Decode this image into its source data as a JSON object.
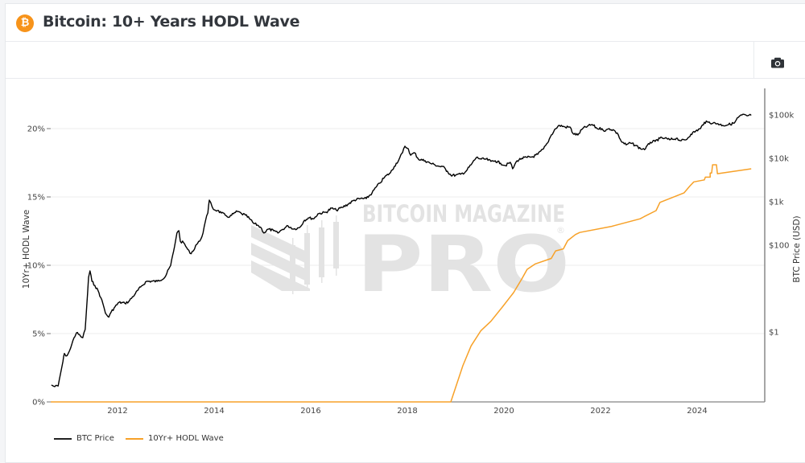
{
  "header": {
    "title": "Bitcoin: 10+ Years HODL Wave",
    "logo_icon": "bitcoin-logo-icon"
  },
  "toolbar": {
    "screenshot_icon": "camera-icon"
  },
  "watermark": {
    "line1": "BITCOIN MAGAZINE",
    "line2": "PRO",
    "mark": "®"
  },
  "colors": {
    "brand": "#f7931a",
    "price_line": "#000000",
    "hodl_line": "#f7a128",
    "grid": "#ececec",
    "watermark": "#e3e3e3"
  },
  "chart_data": {
    "type": "line",
    "title": "Bitcoin: 10+ Years HODL Wave",
    "xlabel": "",
    "ylabel": "10Yr+ HODL Wave",
    "y2label": "BTC Price (USD)",
    "xlim": [
      2010.6,
      2025.2
    ],
    "ylim": [
      0,
      22.2
    ],
    "y2_scale": "log",
    "y2lim": [
      0.025,
      400000
    ],
    "x_ticks": [
      2012,
      2014,
      2016,
      2018,
      2020,
      2022,
      2024
    ],
    "x_tick_labels": [
      "2012",
      "2014",
      "2016",
      "2018",
      "2020",
      "2022",
      "2024"
    ],
    "y_ticks": [
      0,
      5,
      10,
      15,
      20
    ],
    "y_tick_labels": [
      "0%",
      "5%",
      "10%",
      "15%",
      "20%"
    ],
    "y2_ticks": [
      1,
      100,
      1000,
      10000,
      100000
    ],
    "y2_tick_labels": [
      "$1",
      "$100",
      "$1k",
      "$10k",
      "$100k"
    ],
    "grid": true,
    "legend_position": "bottom-left",
    "series": [
      {
        "name": "BTC Price",
        "axis": "right",
        "points": [
          [
            2010.63,
            0.06
          ],
          [
            2010.7,
            0.055
          ],
          [
            2010.77,
            0.057
          ],
          [
            2010.82,
            0.11
          ],
          [
            2010.87,
            0.21
          ],
          [
            2010.9,
            0.32
          ],
          [
            2010.93,
            0.28
          ],
          [
            2010.98,
            0.32
          ],
          [
            2011.03,
            0.43
          ],
          [
            2011.1,
            0.74
          ],
          [
            2011.15,
            0.96
          ],
          [
            2011.23,
            0.81
          ],
          [
            2011.28,
            0.74
          ],
          [
            2011.33,
            1.14
          ],
          [
            2011.38,
            7.7
          ],
          [
            2011.4,
            18.2
          ],
          [
            2011.43,
            25.6
          ],
          [
            2011.47,
            14.7
          ],
          [
            2011.53,
            11.8
          ],
          [
            2011.6,
            8.8
          ],
          [
            2011.65,
            6.3
          ],
          [
            2011.7,
            4.4
          ],
          [
            2011.75,
            2.7
          ],
          [
            2011.82,
            2.2
          ],
          [
            2011.87,
            2.9
          ],
          [
            2011.93,
            3.6
          ],
          [
            2012.03,
            4.8
          ],
          [
            2012.15,
            4.6
          ],
          [
            2012.23,
            5.0
          ],
          [
            2012.37,
            7.7
          ],
          [
            2012.48,
            10.9
          ],
          [
            2012.6,
            14.7
          ],
          [
            2012.82,
            14.7
          ],
          [
            2012.98,
            18.2
          ],
          [
            2013.1,
            34.0
          ],
          [
            2013.2,
            123
          ],
          [
            2013.23,
            190
          ],
          [
            2013.27,
            215
          ],
          [
            2013.3,
            123
          ],
          [
            2013.37,
            113
          ],
          [
            2013.43,
            88
          ],
          [
            2013.5,
            65
          ],
          [
            2013.57,
            74
          ],
          [
            2013.62,
            100
          ],
          [
            2013.7,
            123
          ],
          [
            2013.77,
            190
          ],
          [
            2013.82,
            360
          ],
          [
            2013.87,
            550
          ],
          [
            2013.9,
            1090
          ],
          [
            2013.93,
            960
          ],
          [
            2013.98,
            680
          ],
          [
            2014.07,
            630
          ],
          [
            2014.15,
            550
          ],
          [
            2014.23,
            490
          ],
          [
            2014.32,
            445
          ],
          [
            2014.4,
            530
          ],
          [
            2014.48,
            600
          ],
          [
            2014.57,
            530
          ],
          [
            2014.65,
            490
          ],
          [
            2014.73,
            410
          ],
          [
            2014.82,
            316
          ],
          [
            2014.9,
            290
          ],
          [
            2014.98,
            245
          ],
          [
            2015.03,
            190
          ],
          [
            2015.12,
            235
          ],
          [
            2015.23,
            215
          ],
          [
            2015.32,
            190
          ],
          [
            2015.4,
            225
          ],
          [
            2015.53,
            278
          ],
          [
            2015.65,
            235
          ],
          [
            2015.77,
            255
          ],
          [
            2015.87,
            375
          ],
          [
            2015.95,
            425
          ],
          [
            2016.07,
            410
          ],
          [
            2016.15,
            530
          ],
          [
            2016.32,
            575
          ],
          [
            2016.43,
            710
          ],
          [
            2016.53,
            640
          ],
          [
            2016.65,
            740
          ],
          [
            2016.77,
            875
          ],
          [
            2016.9,
            1090
          ],
          [
            2017.03,
            1180
          ],
          [
            2017.15,
            1180
          ],
          [
            2017.27,
            1600
          ],
          [
            2017.35,
            2150
          ],
          [
            2017.43,
            2680
          ],
          [
            2017.53,
            3700
          ],
          [
            2017.65,
            4650
          ],
          [
            2017.73,
            6500
          ],
          [
            2017.83,
            9600
          ],
          [
            2017.9,
            13500
          ],
          [
            2017.95,
            19000
          ],
          [
            2018.02,
            16600
          ],
          [
            2018.07,
            11800
          ],
          [
            2018.15,
            13500
          ],
          [
            2018.23,
            9600
          ],
          [
            2018.37,
            8800
          ],
          [
            2018.47,
            7750
          ],
          [
            2018.57,
            7100
          ],
          [
            2018.67,
            6500
          ],
          [
            2018.73,
            6500
          ],
          [
            2018.83,
            5050
          ],
          [
            2018.9,
            4100
          ],
          [
            2019.0,
            4100
          ],
          [
            2019.1,
            4300
          ],
          [
            2019.2,
            4850
          ],
          [
            2019.32,
            7100
          ],
          [
            2019.43,
            10500
          ],
          [
            2019.53,
            9600
          ],
          [
            2019.63,
            9600
          ],
          [
            2019.73,
            8500
          ],
          [
            2019.82,
            8800
          ],
          [
            2019.93,
            7750
          ],
          [
            2020.03,
            6800
          ],
          [
            2020.13,
            8100
          ],
          [
            2020.18,
            5750
          ],
          [
            2020.27,
            8800
          ],
          [
            2020.37,
            10000
          ],
          [
            2020.48,
            10500
          ],
          [
            2020.6,
            10900
          ],
          [
            2020.7,
            12400
          ],
          [
            2020.82,
            16600
          ],
          [
            2020.9,
            22500
          ],
          [
            2020.98,
            34500
          ],
          [
            2021.07,
            48500
          ],
          [
            2021.15,
            57500
          ],
          [
            2021.27,
            52500
          ],
          [
            2021.37,
            52500
          ],
          [
            2021.43,
            37300
          ],
          [
            2021.53,
            34500
          ],
          [
            2021.63,
            48500
          ],
          [
            2021.73,
            55000
          ],
          [
            2021.83,
            60000
          ],
          [
            2021.93,
            48500
          ],
          [
            2022.03,
            48500
          ],
          [
            2022.1,
            42500
          ],
          [
            2022.18,
            48500
          ],
          [
            2022.28,
            44500
          ],
          [
            2022.37,
            34500
          ],
          [
            2022.43,
            24500
          ],
          [
            2022.53,
            20500
          ],
          [
            2022.62,
            22500
          ],
          [
            2022.73,
            19800
          ],
          [
            2022.83,
            16600
          ],
          [
            2022.93,
            16600
          ],
          [
            2023.03,
            23500
          ],
          [
            2023.13,
            24500
          ],
          [
            2023.23,
            29000
          ],
          [
            2023.33,
            29000
          ],
          [
            2023.43,
            26800
          ],
          [
            2023.57,
            29000
          ],
          [
            2023.67,
            25500
          ],
          [
            2023.77,
            26800
          ],
          [
            2023.87,
            36000
          ],
          [
            2023.97,
            42500
          ],
          [
            2024.07,
            48500
          ],
          [
            2024.15,
            67900
          ],
          [
            2024.23,
            67900
          ],
          [
            2024.33,
            65000
          ],
          [
            2024.43,
            63000
          ],
          [
            2024.53,
            57500
          ],
          [
            2024.65,
            60000
          ],
          [
            2024.77,
            65000
          ],
          [
            2024.85,
            87700
          ],
          [
            2024.93,
            100000
          ],
          [
            2025.03,
            95700
          ],
          [
            2025.12,
            98000
          ]
        ]
      },
      {
        "name": "10Yr+ HODL Wave",
        "axis": "left",
        "points": [
          [
            2010.62,
            0.0
          ],
          [
            2018.9,
            0.0
          ],
          [
            2019.15,
            2.65
          ],
          [
            2019.32,
            4.1
          ],
          [
            2019.52,
            5.2
          ],
          [
            2019.73,
            5.9
          ],
          [
            2019.98,
            7.0
          ],
          [
            2020.2,
            8.0
          ],
          [
            2020.37,
            9.0
          ],
          [
            2020.48,
            9.7
          ],
          [
            2020.65,
            10.1
          ],
          [
            2020.98,
            10.5
          ],
          [
            2021.07,
            11.05
          ],
          [
            2021.23,
            11.2
          ],
          [
            2021.32,
            11.8
          ],
          [
            2021.48,
            12.25
          ],
          [
            2021.57,
            12.4
          ],
          [
            2022.23,
            12.85
          ],
          [
            2022.82,
            13.4
          ],
          [
            2022.9,
            13.55
          ],
          [
            2023.15,
            14.0
          ],
          [
            2023.23,
            14.6
          ],
          [
            2023.73,
            15.3
          ],
          [
            2023.85,
            15.8
          ],
          [
            2023.93,
            16.1
          ],
          [
            2024.15,
            16.25
          ],
          [
            2024.17,
            16.45
          ],
          [
            2024.27,
            16.45
          ],
          [
            2024.27,
            16.75
          ],
          [
            2024.3,
            16.75
          ],
          [
            2024.32,
            17.35
          ],
          [
            2024.4,
            17.35
          ],
          [
            2024.42,
            16.7
          ],
          [
            2025.12,
            17.06
          ]
        ]
      }
    ]
  },
  "legend": {
    "items": [
      {
        "label": "BTC Price",
        "color": "#222222"
      },
      {
        "label": "10Yr+ HODL Wave",
        "color": "#f7a128"
      }
    ]
  }
}
